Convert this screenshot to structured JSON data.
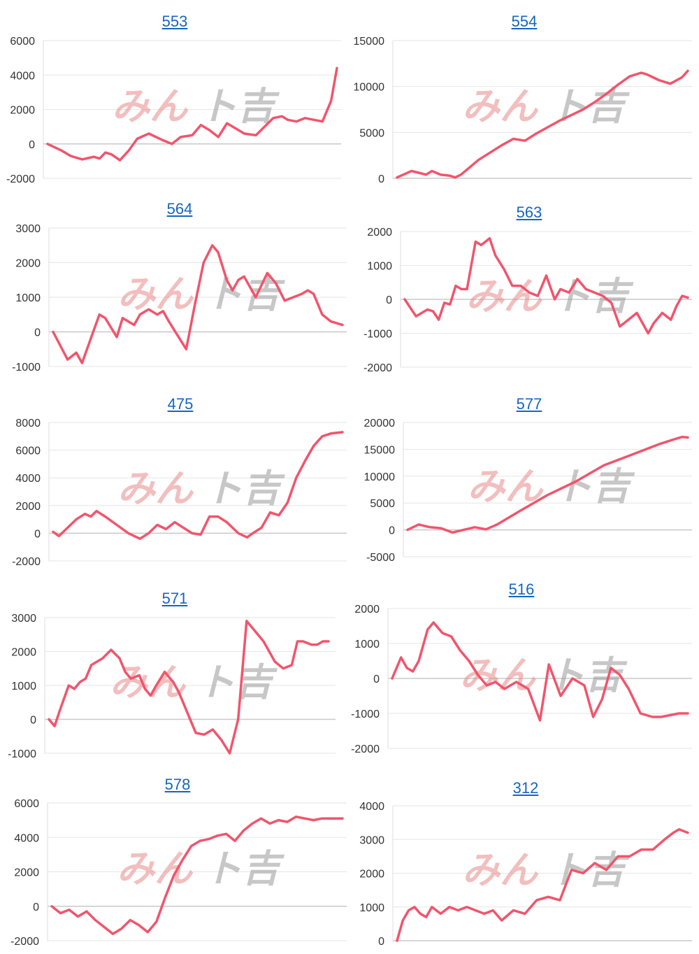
{
  "watermark": {
    "text_pink": "みん",
    "text_gray": "ト吉",
    "color_pink": "#e88a8a",
    "color_gray": "#9a9a9a"
  },
  "line_color": "#f2546c",
  "chart_data": [
    {
      "type": "line",
      "title": "553",
      "ylim": [
        -2000,
        6000
      ],
      "yticks": [
        -2000,
        0,
        2000,
        4000,
        6000
      ],
      "x": [
        0,
        5,
        8,
        12,
        16,
        18,
        20,
        22,
        25,
        28,
        31,
        35,
        40,
        43,
        46,
        50,
        53,
        56,
        59,
        62,
        65,
        68,
        72,
        75,
        78,
        81,
        83,
        86,
        89,
        92,
        95,
        98,
        100
      ],
      "values": [
        0,
        -400,
        -700,
        -900,
        -750,
        -850,
        -500,
        -600,
        -950,
        -400,
        300,
        600,
        200,
        0,
        400,
        500,
        1100,
        800,
        400,
        1200,
        900,
        600,
        500,
        1000,
        1500,
        1600,
        1400,
        1300,
        1500,
        1400,
        1300,
        2500,
        4400
      ]
    },
    {
      "type": "line",
      "title": "554",
      "ylim": [
        0,
        15000
      ],
      "yticks": [
        0,
        5000,
        10000,
        15000
      ],
      "x": [
        0,
        5,
        10,
        12,
        15,
        18,
        20,
        22,
        25,
        28,
        32,
        36,
        40,
        44,
        48,
        52,
        56,
        60,
        64,
        68,
        72,
        76,
        80,
        84,
        86,
        88,
        90,
        94,
        98,
        100
      ],
      "values": [
        100,
        800,
        400,
        800,
        400,
        300,
        100,
        400,
        1200,
        2000,
        2800,
        3600,
        4300,
        4100,
        4900,
        5600,
        6300,
        6900,
        7500,
        8300,
        9200,
        10200,
        11100,
        11500,
        11300,
        11000,
        10700,
        10300,
        11000,
        11700
      ]
    },
    {
      "type": "line",
      "title": "564",
      "ylim": [
        -1000,
        3000
      ],
      "yticks": [
        -1000,
        0,
        1000,
        2000,
        3000
      ],
      "x": [
        0,
        5,
        8,
        10,
        13,
        16,
        18,
        22,
        24,
        26,
        28,
        30,
        33,
        36,
        38,
        40,
        43,
        46,
        49,
        52,
        55,
        57,
        60,
        62,
        64,
        66,
        70,
        74,
        77,
        80,
        83,
        86,
        88,
        90,
        93,
        96,
        98,
        100
      ],
      "values": [
        0,
        -800,
        -600,
        -900,
        -200,
        500,
        400,
        -150,
        400,
        300,
        200,
        500,
        650,
        500,
        600,
        300,
        -100,
        -500,
        800,
        2000,
        2500,
        2300,
        1500,
        1200,
        1500,
        1600,
        1000,
        1700,
        1400,
        900,
        1000,
        1100,
        1200,
        1100,
        500,
        300,
        250,
        200
      ]
    },
    {
      "type": "line",
      "title": "563",
      "ylim": [
        -2000,
        2000
      ],
      "yticks": [
        -2000,
        -1000,
        0,
        1000,
        2000
      ],
      "x": [
        0,
        4,
        8,
        10,
        12,
        14,
        16,
        18,
        20,
        22,
        25,
        27,
        30,
        32,
        35,
        38,
        41,
        44,
        47,
        50,
        53,
        55,
        58,
        61,
        64,
        67,
        70,
        73,
        76,
        79,
        82,
        86,
        88,
        91,
        94,
        96,
        98,
        100
      ],
      "values": [
        0,
        -500,
        -300,
        -350,
        -600,
        -100,
        -150,
        400,
        300,
        300,
        1700,
        1600,
        1800,
        1300,
        900,
        400,
        400,
        200,
        100,
        700,
        0,
        300,
        200,
        600,
        300,
        200,
        100,
        -100,
        -800,
        -600,
        -400,
        -1000,
        -700,
        -400,
        -600,
        -200,
        100,
        50
      ]
    },
    {
      "type": "line",
      "title": "475",
      "ylim": [
        -2000,
        8000
      ],
      "yticks": [
        -2000,
        0,
        2000,
        4000,
        6000,
        8000
      ],
      "x": [
        0,
        2,
        5,
        8,
        11,
        13,
        15,
        18,
        22,
        26,
        30,
        33,
        36,
        39,
        42,
        45,
        48,
        51,
        54,
        57,
        60,
        64,
        67,
        69,
        72,
        75,
        78,
        81,
        84,
        87,
        90,
        93,
        96,
        100
      ],
      "values": [
        100,
        -200,
        400,
        1000,
        1400,
        1200,
        1600,
        1200,
        600,
        0,
        -400,
        0,
        600,
        300,
        800,
        400,
        0,
        -100,
        1200,
        1200,
        800,
        0,
        -300,
        0,
        400,
        1500,
        1300,
        2200,
        4000,
        5200,
        6300,
        7000,
        7200,
        7300
      ]
    },
    {
      "type": "line",
      "title": "577",
      "ylim": [
        -5000,
        20000
      ],
      "yticks": [
        -5000,
        0,
        5000,
        10000,
        15000,
        20000
      ],
      "x": [
        0,
        4,
        8,
        12,
        16,
        20,
        24,
        28,
        32,
        40,
        50,
        60,
        70,
        80,
        90,
        96,
        98,
        100
      ],
      "values": [
        0,
        1000,
        500,
        300,
        -500,
        0,
        500,
        100,
        1000,
        3500,
        6500,
        9000,
        12000,
        14000,
        16000,
        17000,
        17300,
        17200
      ]
    },
    {
      "type": "line",
      "title": "571",
      "ylim": [
        -1000,
        3000
      ],
      "yticks": [
        -1000,
        0,
        1000,
        2000,
        3000
      ],
      "x": [
        0,
        2,
        4,
        7,
        9,
        11,
        13,
        15,
        19,
        22,
        25,
        27,
        29,
        32,
        34,
        36,
        38,
        41,
        44,
        46,
        49,
        52,
        55,
        58,
        61,
        64,
        67,
        70,
        73,
        76,
        78,
        80,
        83,
        86,
        88,
        90,
        93,
        95,
        97,
        99
      ],
      "values": [
        0,
        -200,
        300,
        1000,
        900,
        1100,
        1200,
        1600,
        1800,
        2050,
        1800,
        1400,
        1200,
        1300,
        900,
        700,
        1000,
        1400,
        1100,
        800,
        200,
        -400,
        -450,
        -300,
        -600,
        -1000,
        0,
        2900,
        2600,
        2300,
        2000,
        1700,
        1500,
        1600,
        2300,
        2300,
        2200,
        2200,
        2300,
        2300
      ]
    },
    {
      "type": "line",
      "title": "516",
      "ylim": [
        -2000,
        2000
      ],
      "yticks": [
        -2000,
        -1000,
        0,
        1000,
        2000
      ],
      "x": [
        0,
        3,
        5,
        7,
        9,
        12,
        14,
        17,
        20,
        23,
        26,
        29,
        32,
        35,
        38,
        42,
        46,
        50,
        53,
        57,
        61,
        65,
        68,
        71,
        74,
        77,
        80,
        84,
        88,
        91,
        94,
        97,
        100
      ],
      "values": [
        0,
        600,
        300,
        200,
        500,
        1400,
        1600,
        1300,
        1200,
        800,
        500,
        100,
        -200,
        -100,
        -300,
        -100,
        -300,
        -1200,
        400,
        -500,
        0,
        -200,
        -1100,
        -600,
        300,
        100,
        -300,
        -1000,
        -1100,
        -1100,
        -1050,
        -1000,
        -1000
      ]
    },
    {
      "type": "line",
      "title": "578",
      "ylim": [
        -2000,
        6000
      ],
      "yticks": [
        -2000,
        0,
        2000,
        4000,
        6000
      ],
      "x": [
        0,
        3,
        6,
        9,
        12,
        15,
        18,
        21,
        24,
        27,
        30,
        33,
        36,
        39,
        42,
        45,
        48,
        51,
        54,
        57,
        60,
        63,
        66,
        69,
        72,
        75,
        78,
        81,
        84,
        87,
        90,
        93,
        96,
        98,
        100
      ],
      "values": [
        0,
        -400,
        -200,
        -600,
        -300,
        -800,
        -1200,
        -1600,
        -1300,
        -800,
        -1100,
        -1500,
        -900,
        500,
        1800,
        2700,
        3500,
        3800,
        3900,
        4100,
        4200,
        3800,
        4400,
        4800,
        5100,
        4800,
        5000,
        4900,
        5200,
        5100,
        5000,
        5100,
        5100,
        5100,
        5100
      ]
    },
    {
      "type": "line",
      "title": "312",
      "ylim": [
        0,
        4000
      ],
      "yticks": [
        0,
        1000,
        2000,
        3000,
        4000
      ],
      "x": [
        0,
        2,
        4,
        6,
        8,
        10,
        12,
        15,
        18,
        21,
        24,
        27,
        30,
        33,
        36,
        40,
        44,
        48,
        52,
        56,
        60,
        64,
        68,
        72,
        76,
        80,
        84,
        88,
        92,
        95,
        97,
        100
      ],
      "values": [
        0,
        600,
        900,
        1000,
        800,
        700,
        1000,
        800,
        1000,
        900,
        1000,
        900,
        800,
        900,
        600,
        900,
        800,
        1200,
        1300,
        1200,
        2100,
        2000,
        2300,
        2100,
        2500,
        2500,
        2700,
        2700,
        3000,
        3200,
        3300,
        3200
      ]
    }
  ]
}
